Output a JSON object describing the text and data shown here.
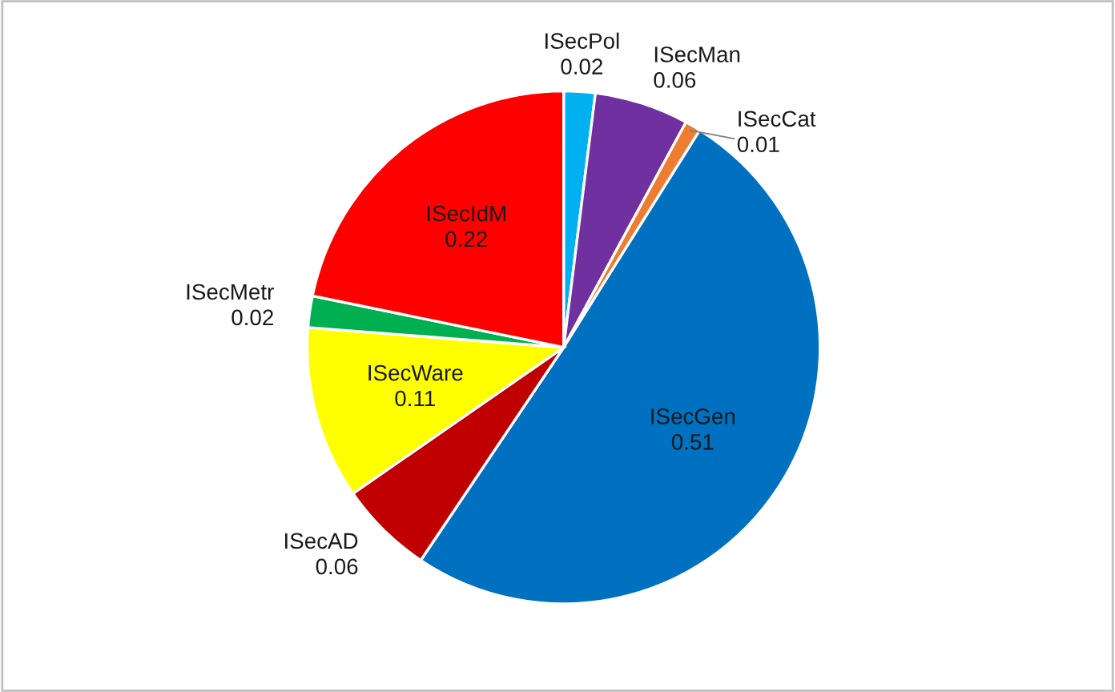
{
  "chart_data": {
    "type": "pie",
    "categories": [
      "ISecPol",
      "ISecMan",
      "ISecCat",
      "ISecGen",
      "ISecAD",
      "ISecWare",
      "ISecMetr",
      "ISecIdM"
    ],
    "values": [
      0.02,
      0.06,
      0.01,
      0.51,
      0.06,
      0.11,
      0.02,
      0.22
    ],
    "colors": [
      "#00b0f0",
      "#7030a0",
      "#ed7d31",
      "#0070c0",
      "#c00000",
      "#ffff00",
      "#00b050",
      "#ff0000"
    ],
    "data_labels": true,
    "legend": false
  }
}
